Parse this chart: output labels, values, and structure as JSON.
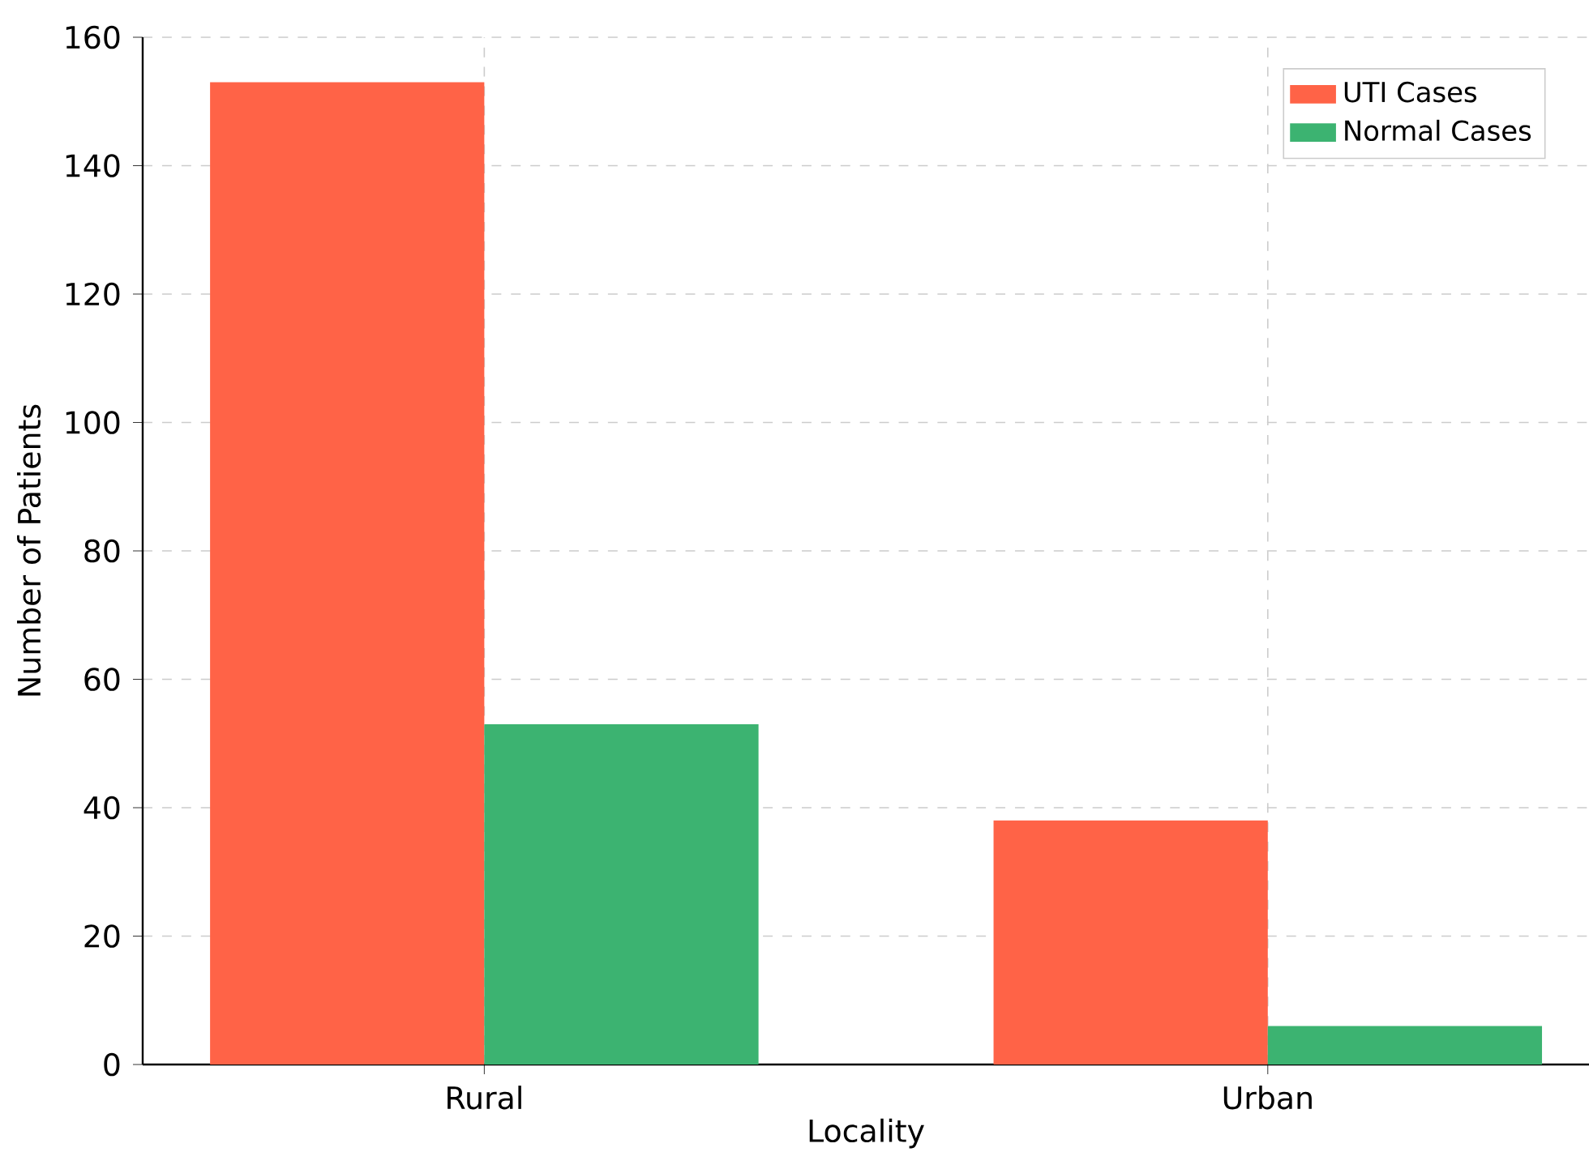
{
  "chart_data": {
    "type": "bar",
    "xlabel": "Locality",
    "ylabel": "Number of Patients",
    "categories": [
      "Rural",
      "Urban"
    ],
    "series": [
      {
        "name": "UTI Cases",
        "color": "#ff6347",
        "values": [
          153,
          38
        ]
      },
      {
        "name": "Normal Cases",
        "color": "#3cb371",
        "values": [
          53,
          6
        ]
      }
    ],
    "ylim": [
      0,
      160
    ],
    "yticks": [
      0,
      20,
      40,
      60,
      80,
      100,
      120,
      140,
      160
    ],
    "grid": true,
    "legend": "top right"
  }
}
